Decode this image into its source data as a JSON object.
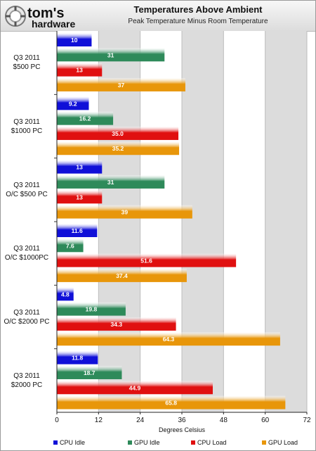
{
  "header": {
    "logo_text_top": "tom's",
    "logo_text_bottom": "hardware"
  },
  "chart_data": {
    "type": "bar",
    "orientation": "horizontal",
    "title": "Temperatures Above Ambient",
    "subtitle": "Peak Temperature Minus Room Temperature",
    "xlabel": "Degrees Celsius",
    "xlim": [
      0,
      72
    ],
    "xticks": [
      "0",
      "12",
      "24",
      "36",
      "48",
      "60",
      "72"
    ],
    "grid": "alternating vertical bands",
    "legend_position": "bottom",
    "categories": [
      [
        "Q3 2011",
        "$500 PC"
      ],
      [
        "Q3 2011",
        "$1000 PC"
      ],
      [
        "Q3 2011",
        "O/C $500 PC"
      ],
      [
        "Q3 2011",
        "O/C $1000PC"
      ],
      [
        "Q3 2011",
        "O/C $2000 PC"
      ],
      [
        "Q3 2011",
        "$2000 PC"
      ]
    ],
    "series": [
      {
        "name": "CPU Idle",
        "color": "#1010d8",
        "values": [
          10,
          9.2,
          13,
          11.6,
          4.8,
          11.8
        ],
        "labels": [
          "10",
          "9.2",
          "13",
          "11.6",
          "4.8",
          "11.8"
        ]
      },
      {
        "name": "GPU Idle",
        "color": "#2e8a5a",
        "values": [
          31,
          16.2,
          31,
          7.6,
          19.8,
          18.7
        ],
        "labels": [
          "31",
          "16.2",
          "31",
          "7.6",
          "19.8",
          "18.7"
        ]
      },
      {
        "name": "CPU Load",
        "color": "#e01010",
        "values": [
          13,
          35.0,
          13,
          51.6,
          34.3,
          44.9
        ],
        "labels": [
          "13",
          "35.0",
          "13",
          "51.6",
          "34.3",
          "44.9"
        ]
      },
      {
        "name": "GPU Load",
        "color": "#e8960a",
        "values": [
          37,
          35.2,
          39,
          37.4,
          64.3,
          65.8
        ],
        "labels": [
          "37",
          "35.2",
          "39",
          "37.4",
          "64.3",
          "65.8"
        ]
      }
    ]
  }
}
